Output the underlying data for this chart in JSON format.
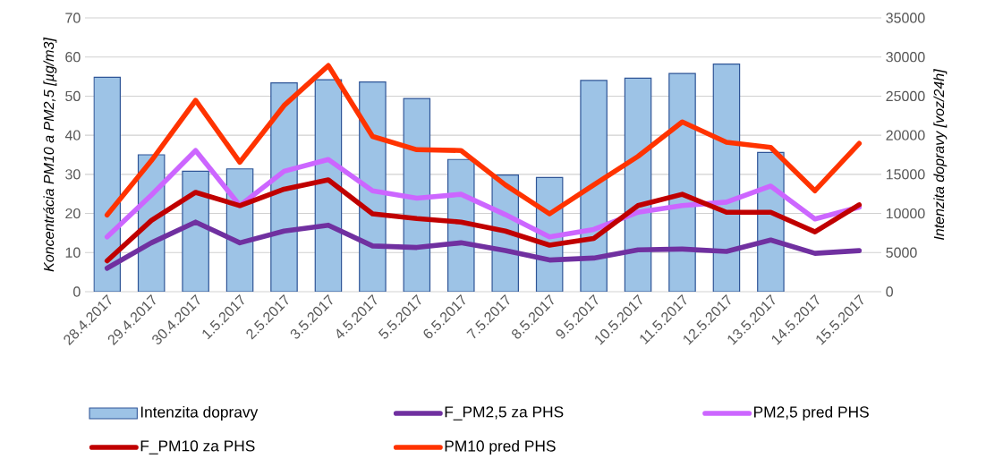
{
  "chart_data": {
    "type": "line",
    "categories": [
      "28.4.2017",
      "29.4.2017",
      "30.4.2017",
      "1.5.2017",
      "2.5.2017",
      "3.5.2017",
      "4.5.2017",
      "5.5.2017",
      "6.5.2017",
      "7.5.2017",
      "8.5.2017",
      "9.5.2017",
      "10.5.2017",
      "11.5.2017",
      "12.5.2017",
      "13.5.2017",
      "14.5.2017",
      "15.5.2017"
    ],
    "ylabel": "Koncentrácia PM10 a PM2,5 [µg/m3]",
    "y2label": "Intenzita dopravy [voz/24h]",
    "ylim": [
      0,
      70
    ],
    "yticks": [
      0,
      10,
      20,
      30,
      40,
      50,
      60,
      70
    ],
    "y2lim": [
      0,
      35000
    ],
    "y2ticks": [
      0,
      5000,
      10000,
      15000,
      20000,
      25000,
      30000,
      35000
    ],
    "grid": "y",
    "legend": "bottom",
    "marker": "none",
    "series": [
      {
        "name": "Intenzita dopravy",
        "type": "bar",
        "axis": "y2",
        "color": "#9dc3e6",
        "values": [
          27400,
          17500,
          15400,
          15700,
          26700,
          27100,
          26800,
          24700,
          16900,
          14900,
          14600,
          27000,
          27300,
          27900,
          29100,
          17800,
          null,
          null
        ]
      },
      {
        "name": "F_PM2,5 za PHS",
        "color": "#7030a0",
        "values": [
          6.0,
          12.5,
          17.8,
          12.5,
          15.5,
          17.0,
          11.7,
          11.3,
          12.5,
          10.5,
          8.1,
          8.6,
          10.7,
          10.9,
          10.3,
          13.2,
          9.8,
          10.5
        ]
      },
      {
        "name": "PM2,5 pred PHS",
        "color": "#cc66ff",
        "values": [
          14.0,
          24.7,
          36.1,
          22.0,
          30.8,
          33.8,
          25.8,
          23.9,
          24.9,
          19.7,
          14.0,
          15.9,
          20.3,
          22.0,
          22.9,
          27.0,
          18.6,
          21.6
        ]
      },
      {
        "name": "F_PM10 za PHS",
        "color": "#c00000",
        "values": [
          7.9,
          18.2,
          25.4,
          22.0,
          26.2,
          28.6,
          19.9,
          18.7,
          17.8,
          15.5,
          11.9,
          13.6,
          22.0,
          24.9,
          20.3,
          20.3,
          15.3,
          22.2
        ]
      },
      {
        "name": "PM10 pred PHS",
        "color": "#ff3300",
        "values": [
          19.6,
          33.5,
          48.9,
          33.1,
          47.6,
          57.8,
          39.7,
          36.3,
          36.1,
          27.3,
          19.9,
          27.3,
          34.6,
          43.4,
          38.2,
          36.9,
          25.8,
          37.9
        ]
      }
    ]
  }
}
